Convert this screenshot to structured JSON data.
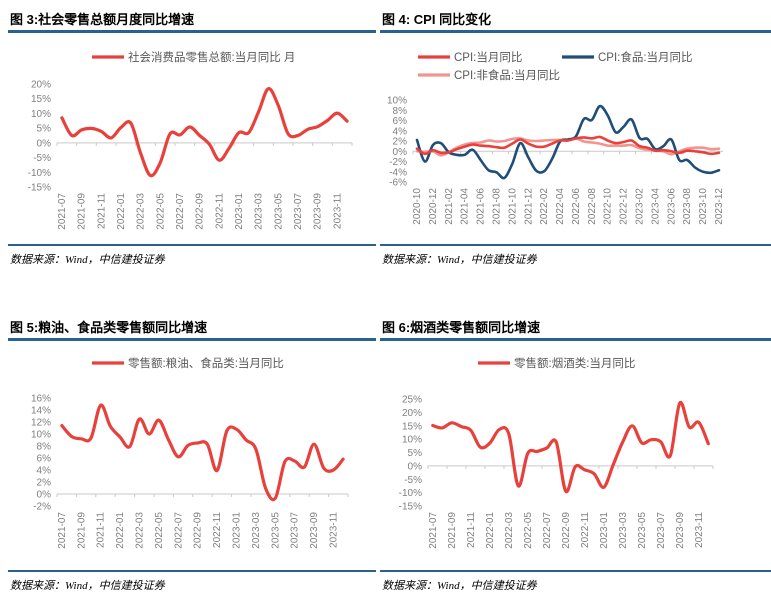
{
  "colors": {
    "rule_blue": "#29618F",
    "main_red": "#E8403A",
    "food_navy": "#1F4E79",
    "nonfood_pink": "#F29490",
    "axis_line": "#C9C9C9",
    "axis_text": "#7F7F7F",
    "legend_text": "#595959"
  },
  "source_note": "数据来源：Wind，中信建投证券",
  "chart_data": [
    {
      "type": "line",
      "title": "图 3:社会零售总额月度同比增速",
      "ylabel_suffix": "%",
      "yticks": [
        20,
        15,
        10,
        5,
        0,
        -5,
        -10,
        -15
      ],
      "ylim": [
        -15,
        20
      ],
      "xtick_every": 2,
      "legend_position": "top",
      "x": [
        "2021-07",
        "2021-08",
        "2021-09",
        "2021-10",
        "2021-11",
        "2021-12",
        "2022-01",
        "2022-02",
        "2022-03",
        "2022-04",
        "2022-05",
        "2022-06",
        "2022-07",
        "2022-08",
        "2022-09",
        "2022-10",
        "2022-11",
        "2022-12",
        "2023-01",
        "2023-02",
        "2023-03",
        "2023-04",
        "2023-05",
        "2023-06",
        "2023-07",
        "2023-08",
        "2023-09",
        "2023-10",
        "2023-11",
        "2023-12"
      ],
      "series": [
        {
          "name": "社会消费品零售总额:当月同比 月",
          "color": "#E8403A",
          "values": [
            8.5,
            2.5,
            4.4,
            4.9,
            3.9,
            1.7,
            5.2,
            6.7,
            -3.5,
            -11.1,
            -6.7,
            3.1,
            2.7,
            5.4,
            2.5,
            -0.5,
            -5.9,
            -1.8,
            3.5,
            3.5,
            10.6,
            18.4,
            12.7,
            3.1,
            2.5,
            4.6,
            5.5,
            7.6,
            10.1,
            7.4
          ]
        }
      ]
    },
    {
      "type": "line",
      "title": "图 4: CPI 同比变化",
      "ylabel_suffix": "%",
      "yticks": [
        10,
        8,
        6,
        4,
        2,
        0,
        -2,
        -4,
        -6
      ],
      "ylim": [
        -6,
        10
      ],
      "xtick_every": 2,
      "legend_position": "top",
      "x": [
        "2020-10",
        "2020-11",
        "2020-12",
        "2021-01",
        "2021-02",
        "2021-03",
        "2021-04",
        "2021-05",
        "2021-06",
        "2021-07",
        "2021-08",
        "2021-09",
        "2021-10",
        "2021-11",
        "2021-12",
        "2022-01",
        "2022-02",
        "2022-03",
        "2022-04",
        "2022-05",
        "2022-06",
        "2022-07",
        "2022-08",
        "2022-09",
        "2022-10",
        "2022-11",
        "2022-12",
        "2023-01",
        "2023-02",
        "2023-03",
        "2023-04",
        "2023-05",
        "2023-06",
        "2023-07",
        "2023-08",
        "2023-09",
        "2023-10",
        "2023-11",
        "2023-12"
      ],
      "series": [
        {
          "name": "CPI:当月同比",
          "color": "#E8403A",
          "values": [
            0.5,
            -0.5,
            0.2,
            -0.3,
            -0.2,
            0.4,
            0.9,
            1.3,
            1.1,
            1.0,
            0.8,
            0.7,
            1.5,
            2.3,
            1.5,
            0.9,
            0.9,
            1.5,
            2.1,
            2.1,
            2.5,
            2.7,
            2.5,
            2.8,
            2.1,
            1.6,
            1.8,
            2.1,
            1.0,
            0.7,
            0.1,
            0.2,
            0.0,
            -0.3,
            0.1,
            0.0,
            -0.2,
            -0.5,
            -0.3
          ]
        },
        {
          "name": "CPI:食品:当月同比",
          "color": "#1F4E79",
          "values": [
            2.2,
            -2.0,
            1.2,
            1.6,
            -0.2,
            -0.7,
            -0.7,
            0.3,
            -1.7,
            -3.7,
            -4.1,
            -5.2,
            -2.4,
            1.6,
            -1.2,
            -3.8,
            -3.9,
            -1.5,
            1.9,
            2.3,
            2.9,
            6.3,
            6.1,
            8.8,
            7.0,
            3.7,
            4.8,
            6.2,
            2.6,
            2.4,
            0.4,
            1.0,
            2.3,
            -1.7,
            -1.7,
            -3.2,
            -4.0,
            -4.2,
            -3.7
          ]
        },
        {
          "name": "CPI:非食品:当月同比",
          "color": "#F29490",
          "values": [
            0.0,
            -0.1,
            0.0,
            -0.8,
            -0.2,
            0.7,
            1.3,
            1.6,
            1.7,
            2.1,
            1.9,
            2.0,
            2.4,
            2.5,
            2.1,
            2.0,
            2.1,
            2.2,
            2.2,
            2.1,
            2.5,
            1.9,
            1.7,
            1.5,
            1.1,
            1.1,
            1.1,
            1.2,
            0.6,
            0.3,
            0.1,
            0.0,
            -0.6,
            0.0,
            0.5,
            0.7,
            0.7,
            0.4,
            0.5
          ]
        }
      ]
    },
    {
      "type": "line",
      "title": "图 5:粮油、食品类零售额同比增速",
      "ylabel_suffix": "%",
      "yticks": [
        16,
        14,
        12,
        10,
        8,
        6,
        4,
        2,
        0,
        -2
      ],
      "ylim": [
        -2,
        16
      ],
      "xtick_every": 2,
      "legend_position": "top",
      "x": [
        "2021-07",
        "2021-08",
        "2021-09",
        "2021-10",
        "2021-11",
        "2021-12",
        "2022-01",
        "2022-02",
        "2022-03",
        "2022-04",
        "2022-05",
        "2022-06",
        "2022-07",
        "2022-08",
        "2022-09",
        "2022-10",
        "2022-11",
        "2022-12",
        "2023-01",
        "2023-02",
        "2023-03",
        "2023-04",
        "2023-05",
        "2023-06",
        "2023-07",
        "2023-08",
        "2023-09",
        "2023-10",
        "2023-11",
        "2023-12"
      ],
      "series": [
        {
          "name": "零售额:粮油、食品类:当月同比",
          "color": "#E8403A",
          "values": [
            11.4,
            9.6,
            9.2,
            9.3,
            14.8,
            11.3,
            9.5,
            7.9,
            12.5,
            10.0,
            12.3,
            9.0,
            6.2,
            8.1,
            8.5,
            8.3,
            3.9,
            10.5,
            10.8,
            9.0,
            7.5,
            1.0,
            -0.7,
            5.4,
            5.5,
            4.5,
            8.3,
            4.3,
            4.0,
            5.8
          ]
        }
      ]
    },
    {
      "type": "line",
      "title": "图 6:烟酒类零售额同比增速",
      "ylabel_suffix": "%",
      "yticks": [
        25,
        20,
        15,
        10,
        5,
        0,
        -5,
        -10,
        -15
      ],
      "ylim": [
        -15,
        25
      ],
      "xtick_every": 2,
      "legend_position": "top",
      "x": [
        "2021-07",
        "2021-08",
        "2021-09",
        "2021-10",
        "2021-11",
        "2021-12",
        "2022-01",
        "2022-02",
        "2022-03",
        "2022-04",
        "2022-05",
        "2022-06",
        "2022-07",
        "2022-08",
        "2022-09",
        "2022-10",
        "2022-11",
        "2022-12",
        "2023-01",
        "2023-02",
        "2023-03",
        "2023-04",
        "2023-05",
        "2023-06",
        "2023-07",
        "2023-08",
        "2023-09",
        "2023-10",
        "2023-11",
        "2023-12"
      ],
      "series": [
        {
          "name": "零售额:烟酒类:当月同比",
          "color": "#E8403A",
          "values": [
            15.1,
            14.2,
            16.1,
            14.7,
            13.3,
            7.0,
            8.5,
            13.6,
            12.0,
            -7.5,
            4.7,
            5.4,
            6.7,
            8.8,
            -9.5,
            -0.3,
            -1.5,
            -3.0,
            -8.0,
            0.5,
            9.0,
            15.0,
            8.6,
            9.8,
            9.0,
            3.8,
            23.5,
            14.5,
            16.3,
            8.3
          ]
        }
      ]
    }
  ]
}
